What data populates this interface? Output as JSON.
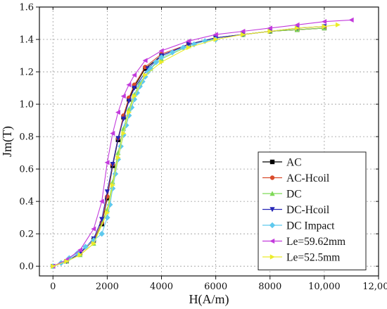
{
  "chart_data": {
    "type": "line",
    "xlabel": "H(A/m)",
    "ylabel": "Jm(T)",
    "xlim": [
      -500,
      12000
    ],
    "ylim": [
      -0.06,
      1.6
    ],
    "x_ticks": [
      0,
      2000,
      4000,
      6000,
      8000,
      10000,
      12000
    ],
    "x_tick_labels": [
      "0",
      "2000",
      "4000",
      "6000",
      "8000",
      "10,000",
      "12,000"
    ],
    "y_ticks": [
      0.0,
      0.2,
      0.4,
      0.6,
      0.8,
      1.0,
      1.2,
      1.4,
      1.6
    ],
    "y_tick_labels": [
      "0.0",
      "0.2",
      "0.4",
      "0.6",
      "0.8",
      "1.0",
      "1.2",
      "1.4",
      "1.6"
    ],
    "grid": true,
    "legend_position": "bottom-right",
    "series": [
      {
        "name": "AC",
        "color": "#000000",
        "marker": "square",
        "x": [
          0,
          500,
          1000,
          1500,
          1800,
          2000,
          2200,
          2400,
          2600,
          2800,
          3000,
          3400,
          4000,
          5000,
          6000,
          7000,
          8000,
          9000,
          10000
        ],
        "y": [
          0.0,
          0.03,
          0.08,
          0.16,
          0.26,
          0.42,
          0.62,
          0.78,
          0.92,
          1.03,
          1.11,
          1.22,
          1.3,
          1.37,
          1.41,
          1.43,
          1.45,
          1.46,
          1.47
        ]
      },
      {
        "name": "AC-Hcoil",
        "color": "#d94c2c",
        "marker": "circle",
        "x": [
          0,
          500,
          1000,
          1500,
          1800,
          2000,
          2200,
          2400,
          2600,
          2800,
          3000,
          3400,
          4000,
          5000,
          6000,
          7000,
          8000,
          9000,
          10000
        ],
        "y": [
          0.0,
          0.03,
          0.08,
          0.16,
          0.27,
          0.43,
          0.63,
          0.79,
          0.93,
          1.04,
          1.12,
          1.23,
          1.31,
          1.37,
          1.41,
          1.43,
          1.45,
          1.46,
          1.47
        ]
      },
      {
        "name": "DC",
        "color": "#7ed957",
        "marker": "triangle-up",
        "x": [
          0,
          500,
          1000,
          1500,
          2000,
          2200,
          2400,
          2600,
          2800,
          3000,
          3200,
          3600,
          4000,
          5000,
          6000,
          7000,
          8000,
          9000,
          10000
        ],
        "y": [
          0.0,
          0.03,
          0.07,
          0.14,
          0.35,
          0.52,
          0.7,
          0.85,
          0.97,
          1.06,
          1.13,
          1.22,
          1.28,
          1.36,
          1.41,
          1.43,
          1.45,
          1.46,
          1.47
        ]
      },
      {
        "name": "DC-Hcoil",
        "color": "#2525b5",
        "marker": "triangle-down",
        "x": [
          0,
          500,
          1000,
          1500,
          1800,
          2000,
          2200,
          2400,
          2600,
          2800,
          3000,
          3500,
          4000,
          5000,
          6000,
          7000,
          8000,
          9000,
          10000
        ],
        "y": [
          0.0,
          0.03,
          0.08,
          0.17,
          0.29,
          0.46,
          0.63,
          0.79,
          0.91,
          1.02,
          1.1,
          1.22,
          1.3,
          1.37,
          1.41,
          1.43,
          1.45,
          1.47,
          1.48
        ]
      },
      {
        "name": "DC Impact",
        "color": "#5ec9ee",
        "marker": "diamond",
        "x": [
          0,
          300,
          600,
          900,
          1200,
          1500,
          1800,
          2000,
          2100,
          2200,
          2300,
          2400,
          2500,
          2600,
          2700,
          2800,
          2900,
          3000,
          3100,
          3200,
          3300,
          3400,
          3500,
          3600,
          3800,
          4000,
          4400,
          4800,
          5200,
          5600,
          6000
        ],
        "y": [
          0.0,
          0.02,
          0.05,
          0.08,
          0.12,
          0.16,
          0.2,
          0.3,
          0.38,
          0.48,
          0.57,
          0.66,
          0.74,
          0.81,
          0.87,
          0.93,
          0.98,
          1.03,
          1.07,
          1.11,
          1.14,
          1.17,
          1.2,
          1.22,
          1.26,
          1.29,
          1.32,
          1.35,
          1.37,
          1.39,
          1.4
        ]
      },
      {
        "name": "Le=59.62mm",
        "color": "#c33bdc",
        "marker": "triangle-left",
        "x": [
          0,
          500,
          1000,
          1500,
          1800,
          2000,
          2200,
          2400,
          2600,
          2800,
          3000,
          3400,
          4000,
          5000,
          6000,
          7000,
          8000,
          9000,
          10000,
          11000
        ],
        "y": [
          0.0,
          0.04,
          0.1,
          0.23,
          0.4,
          0.64,
          0.82,
          0.95,
          1.05,
          1.12,
          1.18,
          1.27,
          1.33,
          1.39,
          1.43,
          1.45,
          1.47,
          1.49,
          1.51,
          1.52
        ]
      },
      {
        "name": "Le=52.5mm",
        "color": "#ecec2a",
        "marker": "triangle-right",
        "x": [
          0,
          500,
          1000,
          1500,
          2000,
          2200,
          2400,
          2600,
          2800,
          3000,
          3400,
          4000,
          5000,
          6000,
          7000,
          8000,
          9000,
          10000,
          10500
        ],
        "y": [
          0.0,
          0.03,
          0.07,
          0.14,
          0.33,
          0.5,
          0.67,
          0.82,
          0.95,
          1.05,
          1.18,
          1.26,
          1.35,
          1.4,
          1.43,
          1.45,
          1.47,
          1.48,
          1.49
        ]
      }
    ]
  }
}
